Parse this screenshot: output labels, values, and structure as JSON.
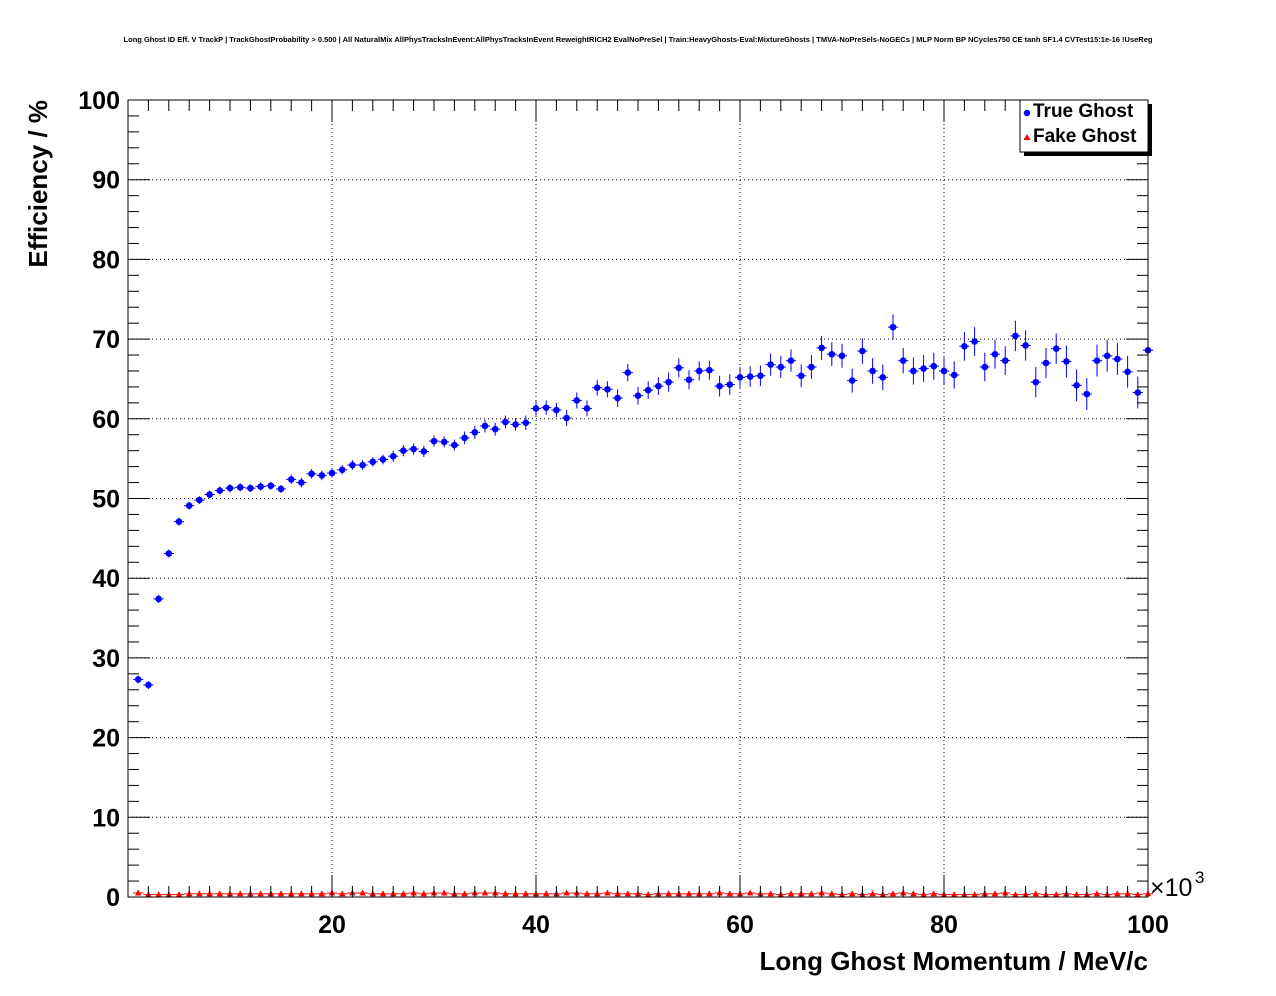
{
  "chart_data": {
    "type": "scatter",
    "title": "Long Ghost ID Eff. V TrackP | TrackGhostProbability > 0.500 | All NaturalMix AllPhysTracksInEvent:AllPhysTracksInEvent ReweightRICH2 EvalNoPreSel | Train:HeavyGhosts-Eval:MixtureGhosts | TMVA-NoPreSels-NoGECs | MLP Norm BP NCycles750 CE tanh SF1.4 CVTest15:1e-16 !UseReg",
    "xlabel": "Long Ghost Momentum / MeV/c",
    "ylabel": "Efficiency / %",
    "x_multiplier_base": "×10",
    "x_multiplier_exp": "3",
    "xlim": [
      0,
      100
    ],
    "ylim": [
      0,
      100
    ],
    "x_ticks": [
      20,
      40,
      60,
      80,
      100
    ],
    "x_tick_labels": [
      "20",
      "40",
      "60",
      "80",
      "100"
    ],
    "y_ticks": [
      0,
      10,
      20,
      30,
      40,
      50,
      60,
      70,
      80,
      90,
      100
    ],
    "y_tick_labels": [
      "0",
      "10",
      "20",
      "30",
      "40",
      "50",
      "60",
      "70",
      "80",
      "90",
      "100"
    ],
    "grid": true,
    "legend_position": "top-right",
    "series": [
      {
        "name": "True Ghost",
        "color": "#0000ff",
        "marker": "circle",
        "x": [
          1,
          2,
          3,
          4,
          5,
          6,
          7,
          8,
          9,
          10,
          11,
          12,
          13,
          14,
          15,
          16,
          17,
          18,
          19,
          20,
          21,
          22,
          23,
          24,
          25,
          26,
          27,
          28,
          29,
          30,
          31,
          32,
          33,
          34,
          35,
          36,
          37,
          38,
          39,
          40,
          41,
          42,
          43,
          44,
          45,
          46,
          47,
          48,
          49,
          50,
          51,
          52,
          53,
          54,
          55,
          56,
          57,
          58,
          59,
          60,
          61,
          62,
          63,
          64,
          65,
          66,
          67,
          68,
          69,
          70,
          71,
          72,
          73,
          74,
          75,
          76,
          77,
          78,
          79,
          80,
          81,
          82,
          83,
          84,
          85,
          86,
          87,
          88,
          89,
          90,
          91,
          92,
          93,
          94,
          95,
          96,
          97,
          98,
          99,
          100
        ],
        "values": [
          27.3,
          26.6,
          37.4,
          43.1,
          47.1,
          49.1,
          49.8,
          50.5,
          51.0,
          51.3,
          51.4,
          51.3,
          51.5,
          51.6,
          51.2,
          52.4,
          52.0,
          53.1,
          52.9,
          53.2,
          53.6,
          54.2,
          54.2,
          54.6,
          54.9,
          55.3,
          56.0,
          56.2,
          55.9,
          57.2,
          57.1,
          56.7,
          57.6,
          58.3,
          59.1,
          58.7,
          59.6,
          59.3,
          59.5,
          61.3,
          61.4,
          61.1,
          60.1,
          62.3,
          61.3,
          63.9,
          63.7,
          62.6,
          65.8,
          62.9,
          63.6,
          64.1,
          64.6,
          66.4,
          64.9,
          66.0,
          66.1,
          64.1,
          64.3,
          65.2,
          65.3,
          65.4,
          66.8,
          66.5,
          67.3,
          65.4,
          66.5,
          68.9,
          68.1,
          67.9,
          64.8,
          68.5,
          66.0,
          65.2,
          71.5,
          67.3,
          66.0,
          66.3,
          66.6,
          66.0,
          65.5,
          69.1,
          69.7,
          66.5,
          68.1,
          67.3,
          70.4,
          69.2,
          64.6,
          67.0,
          68.8,
          67.2,
          64.2,
          63.1,
          67.3,
          67.9,
          67.5,
          65.9,
          63.3,
          68.6
        ],
        "errors": [
          0.5,
          0.5,
          0.5,
          0.5,
          0.5,
          0.5,
          0.5,
          0.5,
          0.5,
          0.5,
          0.5,
          0.5,
          0.5,
          0.5,
          0.5,
          0.6,
          0.6,
          0.6,
          0.6,
          0.6,
          0.6,
          0.6,
          0.6,
          0.6,
          0.6,
          0.7,
          0.7,
          0.7,
          0.7,
          0.7,
          0.7,
          0.7,
          0.8,
          0.8,
          0.8,
          0.8,
          0.8,
          0.8,
          0.9,
          0.9,
          0.9,
          0.9,
          1.0,
          1.0,
          1.0,
          1.0,
          1.0,
          1.1,
          1.1,
          1.1,
          1.1,
          1.1,
          1.2,
          1.2,
          1.2,
          1.2,
          1.2,
          1.3,
          1.3,
          1.3,
          1.3,
          1.3,
          1.4,
          1.4,
          1.4,
          1.4,
          1.5,
          1.5,
          1.5,
          1.5,
          1.5,
          1.6,
          1.6,
          1.6,
          1.6,
          1.6,
          1.7,
          1.7,
          1.7,
          1.7,
          1.7,
          1.8,
          1.8,
          1.8,
          1.8,
          1.8,
          1.9,
          1.9,
          1.9,
          1.9,
          1.9,
          2.0,
          2.0,
          2.0,
          2.0,
          2.0,
          2.0,
          2.0,
          2.0,
          2.0
        ]
      },
      {
        "name": "Fake Ghost",
        "color": "#ff0000",
        "marker": "triangle",
        "x": [
          1,
          2,
          3,
          4,
          5,
          6,
          7,
          8,
          9,
          10,
          11,
          12,
          13,
          14,
          15,
          16,
          17,
          18,
          19,
          20,
          21,
          22,
          23,
          24,
          25,
          26,
          27,
          28,
          29,
          30,
          31,
          32,
          33,
          34,
          35,
          36,
          37,
          38,
          39,
          40,
          41,
          42,
          43,
          44,
          45,
          46,
          47,
          48,
          49,
          50,
          51,
          52,
          53,
          54,
          55,
          56,
          57,
          58,
          59,
          60,
          61,
          62,
          63,
          64,
          65,
          66,
          67,
          68,
          69,
          70,
          71,
          72,
          73,
          74,
          75,
          76,
          77,
          78,
          79,
          80,
          81,
          82,
          83,
          84,
          85,
          86,
          87,
          88,
          89,
          90,
          91,
          92,
          93,
          94,
          95,
          96,
          97,
          98,
          99,
          100
        ],
        "values": [
          0.5,
          0.3,
          0.3,
          0.3,
          0.3,
          0.4,
          0.4,
          0.4,
          0.4,
          0.4,
          0.4,
          0.4,
          0.4,
          0.4,
          0.4,
          0.4,
          0.4,
          0.4,
          0.4,
          0.5,
          0.4,
          0.5,
          0.5,
          0.4,
          0.4,
          0.4,
          0.4,
          0.5,
          0.4,
          0.5,
          0.5,
          0.4,
          0.4,
          0.5,
          0.5,
          0.5,
          0.4,
          0.4,
          0.4,
          0.4,
          0.4,
          0.4,
          0.5,
          0.5,
          0.4,
          0.4,
          0.5,
          0.4,
          0.4,
          0.4,
          0.3,
          0.4,
          0.4,
          0.4,
          0.4,
          0.4,
          0.4,
          0.5,
          0.4,
          0.4,
          0.5,
          0.4,
          0.4,
          0.3,
          0.4,
          0.4,
          0.4,
          0.5,
          0.4,
          0.3,
          0.4,
          0.3,
          0.4,
          0.3,
          0.4,
          0.5,
          0.4,
          0.3,
          0.4,
          0.3,
          0.3,
          0.3,
          0.3,
          0.4,
          0.4,
          0.5,
          0.3,
          0.3,
          0.4,
          0.3,
          0.3,
          0.4,
          0.3,
          0.3,
          0.4,
          0.3,
          0.4,
          0.4,
          0.3,
          0.4
        ],
        "errors": [
          0.1,
          0.1,
          0.1,
          0.1,
          0.1,
          0.1,
          0.1,
          0.1,
          0.1,
          0.1,
          0.1,
          0.1,
          0.1,
          0.1,
          0.1,
          0.1,
          0.1,
          0.1,
          0.1,
          0.1,
          0.1,
          0.1,
          0.1,
          0.1,
          0.1,
          0.1,
          0.1,
          0.1,
          0.1,
          0.1,
          0.1,
          0.1,
          0.1,
          0.1,
          0.1,
          0.1,
          0.1,
          0.1,
          0.1,
          0.1,
          0.1,
          0.1,
          0.1,
          0.1,
          0.1,
          0.1,
          0.1,
          0.1,
          0.1,
          0.1,
          0.1,
          0.1,
          0.1,
          0.1,
          0.1,
          0.1,
          0.1,
          0.1,
          0.1,
          0.1,
          0.1,
          0.1,
          0.1,
          0.1,
          0.1,
          0.1,
          0.1,
          0.1,
          0.1,
          0.1,
          0.1,
          0.1,
          0.1,
          0.1,
          0.1,
          0.1,
          0.1,
          0.1,
          0.1,
          0.1,
          0.1,
          0.1,
          0.1,
          0.1,
          0.1,
          0.1,
          0.1,
          0.1,
          0.1,
          0.1,
          0.1,
          0.1,
          0.1,
          0.1,
          0.1,
          0.1,
          0.1,
          0.1,
          0.1,
          0.1
        ]
      }
    ]
  }
}
